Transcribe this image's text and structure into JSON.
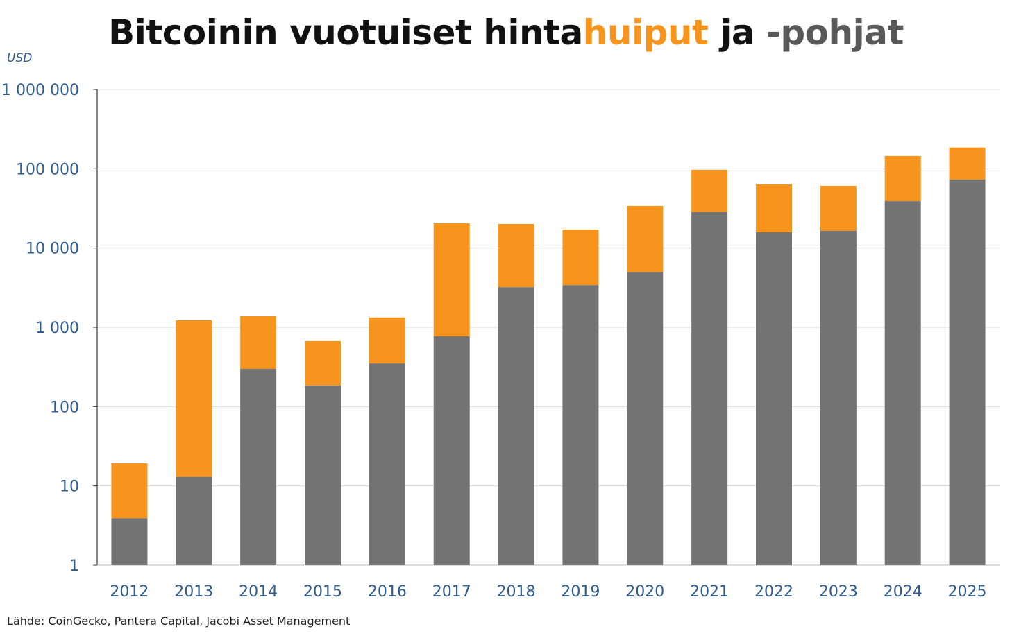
{
  "chart_data": {
    "type": "bar",
    "stacked": true,
    "title_parts": {
      "part1": "Bitcoinin vuotuiset hinta",
      "part2": "huiput",
      "part3": " ja ",
      "part4": "-pohjat"
    },
    "ylabel": "USD",
    "yscale": "log",
    "ylim": [
      1,
      1000000
    ],
    "yticks": [
      "1",
      "10",
      "100",
      "1 000",
      "10 000",
      "100 000",
      "1 000 000"
    ],
    "ytick_values": [
      1,
      10,
      100,
      1000,
      10000,
      100000,
      1000000
    ],
    "grid": true,
    "categories": [
      "2012",
      "2013",
      "2014",
      "2015",
      "2016",
      "2017",
      "2018",
      "2019",
      "2020",
      "2021",
      "2022",
      "2023",
      "2024",
      "2025"
    ],
    "series": [
      {
        "name": "pohjat",
        "color": "#737373",
        "values": [
          3.9,
          13,
          300,
          185,
          350,
          770,
          3200,
          3400,
          5000,
          28500,
          15800,
          16500,
          39000,
          73000
        ]
      },
      {
        "name": "huiput",
        "color": "#F7941D",
        "values": [
          19.3,
          1225,
          1380,
          670,
          1330,
          20500,
          20100,
          17100,
          34000,
          97000,
          63500,
          61000,
          145000,
          185000
        ]
      }
    ],
    "source": "Lähde: CoinGecko, Pantera Capital, Jacobi Asset Management"
  }
}
